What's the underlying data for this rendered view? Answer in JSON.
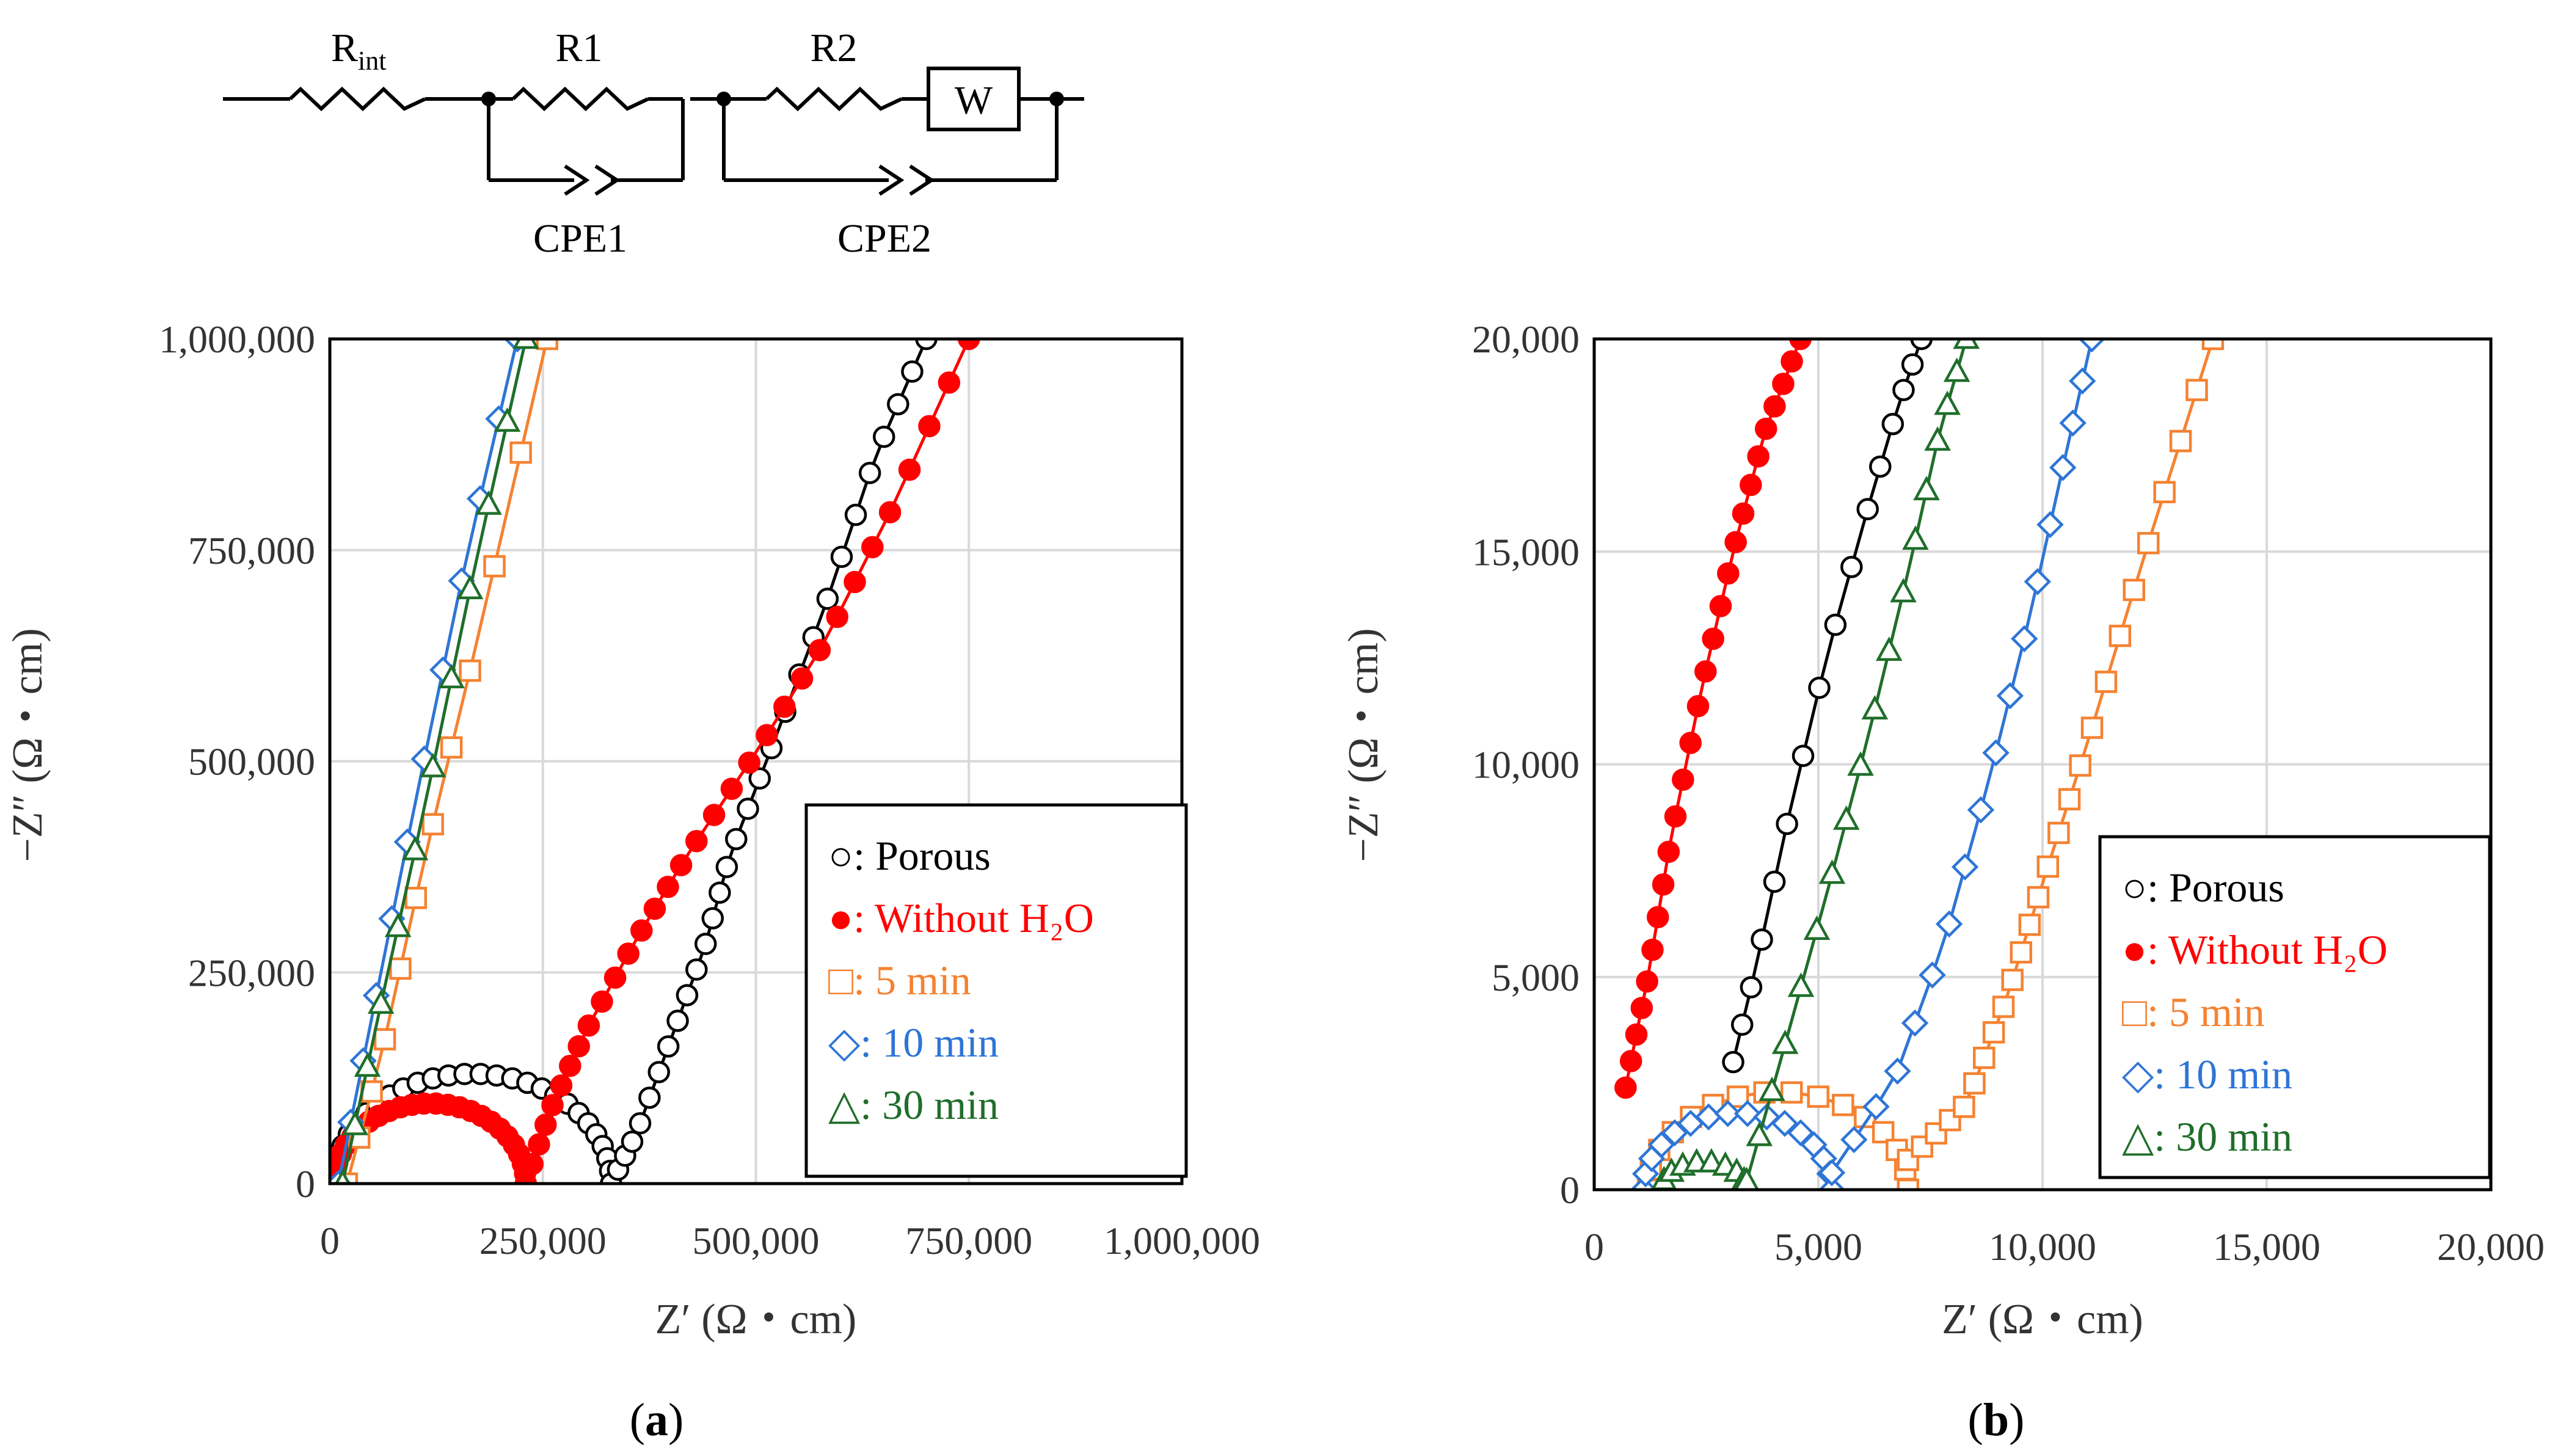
{
  "circuit": {
    "labels": {
      "rint_main": "R",
      "rint_sub": "int",
      "r1": "R1",
      "r2": "R2",
      "w": "W",
      "cpe1": "CPE1",
      "cpe2": "CPE2"
    }
  },
  "panels": {
    "a": "a",
    "b": "b"
  },
  "colors": {
    "Porous": "#000000",
    "Without H2O": "#ff0000",
    "5 min": "#f58231",
    "10 min": "#2e75d6",
    "30 min": "#1f6e2a"
  },
  "chart_data": [
    {
      "type": "scatter",
      "id": "a",
      "title": "",
      "xlabel": "Z′ (Ω・cm)",
      "ylabel": "−Z″ (Ω・cm)",
      "xlim": [
        0,
        1000000
      ],
      "ylim": [
        0,
        1000000
      ],
      "grid": true,
      "xticks": [
        0,
        250000,
        500000,
        750000,
        1000000
      ],
      "yticks": [
        0,
        250000,
        500000,
        750000,
        1000000
      ],
      "xtick_labels": [
        "0",
        "250,000",
        "500,000",
        "750,000",
        "1,000,000"
      ],
      "ytick_labels": [
        "0",
        "250,000",
        "500,000",
        "750,000",
        "1,000,000"
      ],
      "legend": {
        "position": "lower-right",
        "entries": [
          {
            "symbol": "○",
            "text": ": Porous",
            "color": "#000000"
          },
          {
            "symbol": "●",
            "text": ": Without H₂O",
            "color": "#ff0000"
          },
          {
            "symbol": "□",
            "text": ": 5 min",
            "color": "#f58231"
          },
          {
            "symbol": "◇",
            "text": ": 10 min",
            "color": "#2e75d6"
          },
          {
            "symbol": "△",
            "text": ": 30 min",
            "color": "#1f6e2a"
          }
        ]
      },
      "series": [
        {
          "name": "Porous",
          "marker": "circle-open",
          "color": "#000000",
          "arc": {
            "x0": 5000,
            "x1": 330000,
            "peak": 130000,
            "n": 28
          },
          "tail": {
            "x": [
              330000,
              360000,
              400000,
              440000,
              470000,
              520000,
              580000,
              640000,
              700000
            ],
            "y": [
              0,
              60000,
              170000,
              280000,
              390000,
              520000,
              680000,
              860000,
              1000000
            ],
            "n": 30
          }
        },
        {
          "name": "Without H2O",
          "marker": "circle-filled",
          "color": "#ff0000",
          "arc": {
            "x0": 5000,
            "x1": 230000,
            "peak": 95000,
            "n": 26
          },
          "tail": {
            "x": [
              230000,
              260000,
              300000,
              360000,
              420000,
              500000,
              580000,
              660000,
              750000
            ],
            "y": [
              0,
              90000,
              180000,
              290000,
              390000,
              510000,
              640000,
              800000,
              1000000
            ],
            "n": 32
          }
        },
        {
          "name": "5 min",
          "marker": "square-open",
          "color": "#f58231",
          "tail": {
            "x": [
              20000,
              60000,
              110000,
              170000,
              255000
            ],
            "y": [
              0,
              150000,
              380000,
              630000,
              1000000
            ],
            "n": 12
          }
        },
        {
          "name": "10 min",
          "marker": "diamond-open",
          "color": "#2e75d6",
          "tail": {
            "x": [
              10000,
              50000,
              100000,
              160000,
              220000
            ],
            "y": [
              0,
              200000,
              450000,
              740000,
              1000000
            ],
            "n": 12
          }
        },
        {
          "name": "30 min",
          "marker": "triangle-open",
          "color": "#1f6e2a",
          "tail": {
            "x": [
              15000,
              55000,
              110000,
              170000,
              230000
            ],
            "y": [
              0,
              190000,
              440000,
              730000,
              1000000
            ],
            "n": 12
          }
        }
      ]
    },
    {
      "type": "scatter",
      "id": "b",
      "title": "",
      "xlabel": "Z′ (Ω・cm)",
      "ylabel": "−Z″ (Ω・cm)",
      "xlim": [
        0,
        20000
      ],
      "ylim": [
        0,
        20000
      ],
      "grid": true,
      "xticks": [
        0,
        5000,
        10000,
        15000,
        20000
      ],
      "yticks": [
        0,
        5000,
        10000,
        15000,
        20000
      ],
      "xtick_labels": [
        "0",
        "5,000",
        "10,000",
        "15,000",
        "20,000"
      ],
      "ytick_labels": [
        "0",
        "5,000",
        "10,000",
        "15,000",
        "20,000"
      ],
      "legend": {
        "position": "lower-right",
        "entries": [
          {
            "symbol": "○",
            "text": ": Porous",
            "color": "#000000"
          },
          {
            "symbol": "●",
            "text": ": Without H₂O",
            "color": "#ff0000"
          },
          {
            "symbol": "□",
            "text": ": 5 min",
            "color": "#f58231"
          },
          {
            "symbol": "◇",
            "text": ": 10 min",
            "color": "#2e75d6"
          },
          {
            "symbol": "△",
            "text": ": 30 min",
            "color": "#1f6e2a"
          }
        ]
      },
      "series": [
        {
          "name": "Porous",
          "marker": "circle-open",
          "color": "#000000",
          "tail": {
            "x": [
              3100,
              3600,
              4300,
              5200,
              6100,
              6800,
              7300
            ],
            "y": [
              3000,
              5200,
              8600,
              12600,
              16000,
              18500,
              20000
            ],
            "n": 16
          }
        },
        {
          "name": "Without H2O",
          "marker": "circle-filled",
          "color": "#ff0000",
          "tail": {
            "x": [
              700,
              1200,
              1700,
              2400,
              3100,
              3800,
              4600
            ],
            "y": [
              2400,
              5000,
              8200,
              11800,
              15000,
              17800,
              20000
            ],
            "n": 26
          }
        },
        {
          "name": "5 min",
          "marker": "square-open",
          "color": "#f58231",
          "arc": {
            "x0": 1200,
            "x1": 7000,
            "peak": 2300,
            "n": 16
          },
          "tail": {
            "x": [
              7000,
              8300,
              9200,
              10000,
              11000,
              12300,
              13800
            ],
            "y": [
              700,
              2000,
              4500,
              7200,
              10500,
              15000,
              20000
            ],
            "n": 26
          }
        },
        {
          "name": "10 min",
          "marker": "diamond-open",
          "color": "#2e75d6",
          "arc": {
            "x0": 1100,
            "x1": 5300,
            "peak": 1800,
            "n": 16
          },
          "tail": {
            "x": [
              5300,
              6700,
              7800,
              8800,
              9700,
              10500,
              11100
            ],
            "y": [
              400,
              2600,
              5800,
              9600,
              13400,
              17200,
              20000
            ],
            "n": 18
          }
        },
        {
          "name": "30 min",
          "marker": "triangle-open",
          "color": "#1f6e2a",
          "arc": {
            "x0": 1500,
            "x1": 3400,
            "peak": 650,
            "n": 10
          },
          "tail": {
            "x": [
              3400,
              4200,
              5200,
              6100,
              7000,
              7700,
              8300
            ],
            "y": [
              200,
              3200,
              7000,
              10600,
              14500,
              17800,
              20000
            ],
            "n": 18
          }
        }
      ]
    }
  ]
}
